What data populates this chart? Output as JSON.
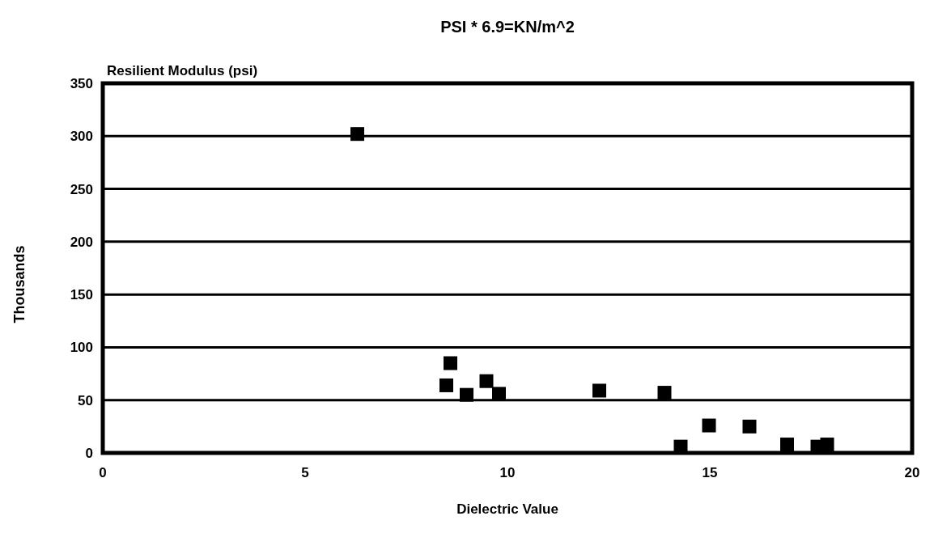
{
  "chart_data": {
    "type": "scatter",
    "title": "PSI * 6.9=KN/m^2",
    "subtitle": "Resilient Modulus (psi)",
    "xlabel": "Dielectric Value",
    "ylabel": "Thousands",
    "x": [
      6.29,
      8.59,
      8.49,
      8.99,
      9.48,
      9.79,
      12.27,
      13.88,
      14.28,
      14.98,
      15.98,
      16.91,
      17.66,
      17.9
    ],
    "values": [
      302,
      85,
      64,
      55,
      68,
      56,
      59,
      57,
      6,
      26,
      25,
      8,
      6,
      8
    ],
    "color": "#000000",
    "marker": "square",
    "xlim": [
      0,
      20
    ],
    "xticks": [
      0,
      5,
      10,
      15,
      20
    ],
    "ylim": [
      0,
      350
    ],
    "yticks": [
      0,
      50,
      100,
      150,
      200,
      250,
      300,
      350
    ],
    "grid": "y"
  }
}
